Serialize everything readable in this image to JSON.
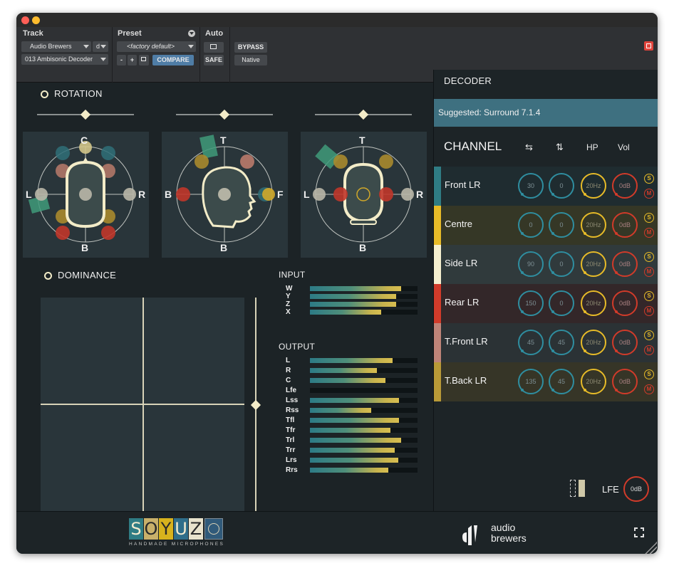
{
  "host": {
    "track": {
      "label": "Track",
      "name": "Audio Brewers",
      "suffix": "d",
      "insert": "013 Ambisonic Decoder"
    },
    "preset": {
      "label": "Preset",
      "name": "<factory default>",
      "minus": "-",
      "plus": "+",
      "compare": "COMPARE"
    },
    "auto": {
      "label": "Auto",
      "safe": "SAFE"
    },
    "bypass": "BYPASS",
    "native": "Native"
  },
  "rotation": {
    "title": "ROTATION",
    "views": [
      {
        "top": "C",
        "left": "L",
        "right": "R",
        "bottom": "B"
      },
      {
        "top": "T",
        "left": "B",
        "right": "F",
        "bottom": "B"
      },
      {
        "top": "T",
        "left": "L",
        "right": "R",
        "bottom": "B"
      }
    ]
  },
  "dominance": {
    "title": "DOMINANCE"
  },
  "input": {
    "title": "INPUT",
    "meters": [
      {
        "label": "W",
        "level": 0.85
      },
      {
        "label": "Y",
        "level": 0.8
      },
      {
        "label": "Z",
        "level": 0.8
      },
      {
        "label": "X",
        "level": 0.66
      }
    ]
  },
  "output": {
    "title": "OUTPUT",
    "meters": [
      {
        "label": "L",
        "level": 0.77
      },
      {
        "label": "R",
        "level": 0.62
      },
      {
        "label": "C",
        "level": 0.7
      },
      {
        "label": "Lfe",
        "level": 0.0
      },
      {
        "label": "Lss",
        "level": 0.83
      },
      {
        "label": "Rss",
        "level": 0.57
      },
      {
        "label": "Tfl",
        "level": 0.83
      },
      {
        "label": "Tfr",
        "level": 0.75
      },
      {
        "label": "Trl",
        "level": 0.85
      },
      {
        "label": "Trr",
        "level": 0.79
      },
      {
        "label": "Lrs",
        "level": 0.82
      },
      {
        "label": "Rrs",
        "level": 0.73
      }
    ]
  },
  "decoder": {
    "title": "DECODER",
    "suggested": "Suggested: Surround 7.1.4",
    "columns": {
      "channel": "CHANNEL",
      "swap_icon": "swap-icon",
      "updown_icon": "up-down-icon",
      "hp": "HP",
      "vol": "Vol"
    },
    "channels": [
      {
        "name": "Front LR",
        "color": "#2f7c84",
        "bg": "#1f2c30",
        "az": "30",
        "el": "0",
        "hp": "20Hz",
        "vol": "0dB"
      },
      {
        "name": "Centre",
        "color": "#e7bb28",
        "bg": "#353726",
        "az": "0",
        "el": "0",
        "hp": "20Hz",
        "vol": "0dB"
      },
      {
        "name": "Side LR",
        "color": "#f5efcf",
        "bg": "#303a3c",
        "az": "90",
        "el": "0",
        "hp": "20Hz",
        "vol": "0dB"
      },
      {
        "name": "Rear LR",
        "color": "#d13b2a",
        "bg": "#332729",
        "az": "150",
        "el": "0",
        "hp": "20Hz",
        "vol": "0dB"
      },
      {
        "name": "T.Front LR",
        "color": "#bf8478",
        "bg": "#2b3235",
        "az": "45",
        "el": "45",
        "hp": "20Hz",
        "vol": "0dB"
      },
      {
        "name": "T.Back LR",
        "color": "#b99a37",
        "bg": "#363527",
        "az": "135",
        "el": "45",
        "hp": "20Hz",
        "vol": "0dB"
      }
    ],
    "solo": "S",
    "mute": "M",
    "lfe": {
      "label": "LFE",
      "vol": "0dB"
    }
  },
  "brands": {
    "soyuz": [
      "S",
      "O",
      "Y",
      "U",
      "Z"
    ],
    "soyuz_sub": "HANDMADE MICROPHONES",
    "audio_brewers": [
      "audio",
      "brewers"
    ]
  },
  "colors": {
    "teal": "#2f8ea0",
    "yellow": "#e7bb28",
    "red": "#d13b2a",
    "cream": "#f3ecc8",
    "suggest_bg": "#3e7080"
  }
}
